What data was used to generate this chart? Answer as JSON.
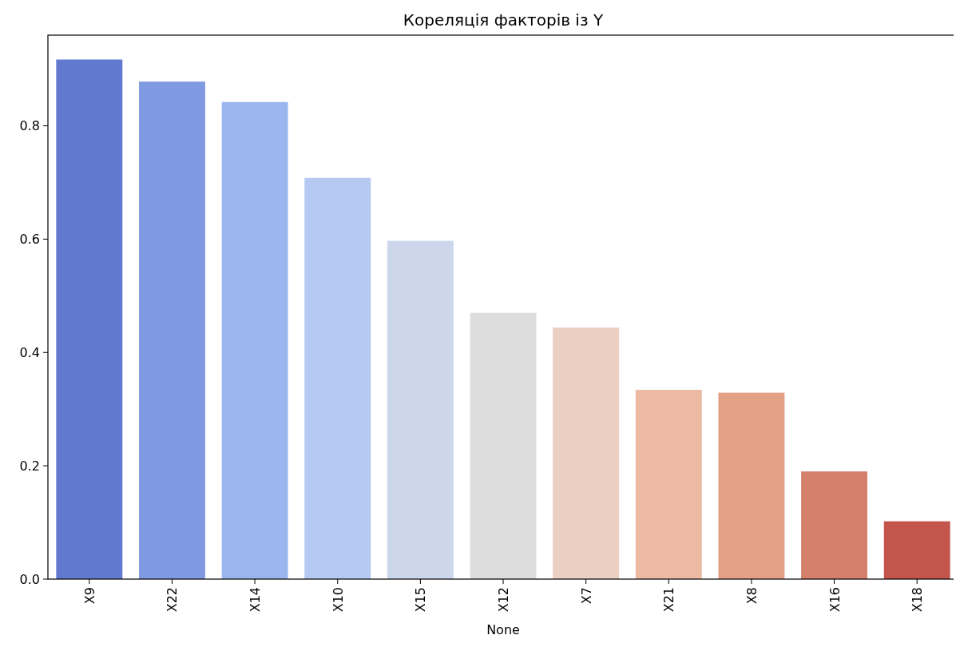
{
  "chart_data": {
    "type": "bar",
    "title": "Кореляція факторів із Y",
    "xlabel": "None",
    "categories": [
      "X9",
      "X22",
      "X14",
      "X10",
      "X15",
      "X12",
      "X7",
      "X21",
      "X8",
      "X16",
      "X18"
    ],
    "values": [
      0.917,
      0.878,
      0.842,
      0.708,
      0.597,
      0.47,
      0.444,
      0.334,
      0.329,
      0.19,
      0.102
    ],
    "colors": [
      "#6279d0",
      "#7f9ae1",
      "#9bb5ee",
      "#b5c9f2",
      "#ccd7ec",
      "#dddddd",
      "#ebcfc2",
      "#ecb9a2",
      "#e3a086",
      "#d4806a",
      "#c3554c"
    ],
    "ylim": [
      0,
      0.96
    ],
    "yticks": [
      {
        "value": 0,
        "label": "0.0"
      },
      {
        "value": 0.2,
        "label": "0.2"
      },
      {
        "value": 0.4,
        "label": "0.4"
      },
      {
        "value": 0.6,
        "label": "0.6"
      },
      {
        "value": 0.8,
        "label": "0.8"
      }
    ],
    "grid": false
  }
}
